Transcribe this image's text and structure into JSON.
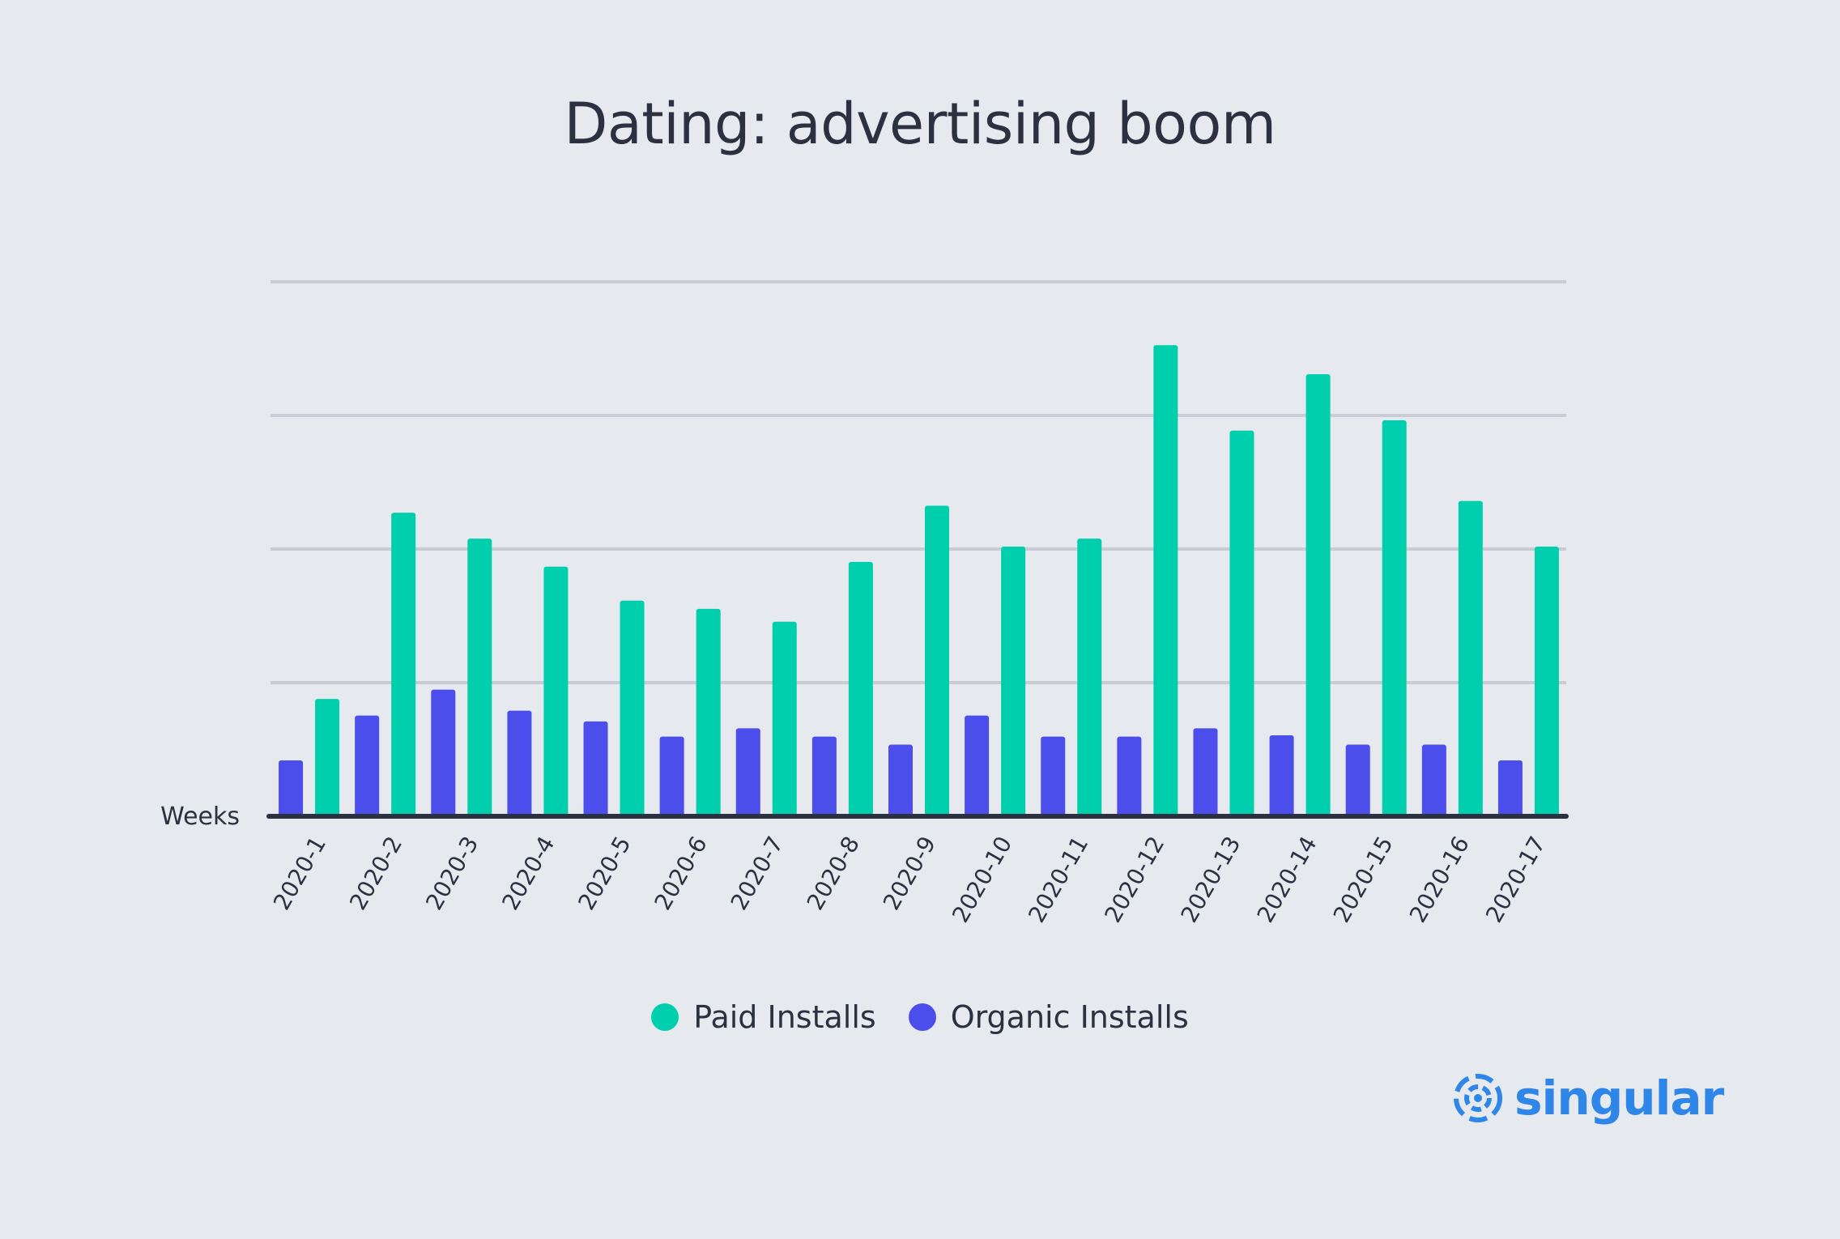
{
  "chart_data": {
    "type": "bar",
    "title": "Dating: advertising boom",
    "xlabel": "Weeks",
    "ylabel": "",
    "ylim": [
      0,
      200
    ],
    "y_gridlines": [
      50,
      100,
      150,
      200
    ],
    "y_tick_labels_shown": false,
    "grid": true,
    "legend_position": "bottom-center",
    "categories": [
      "2020-1",
      "2020-2",
      "2020-3",
      "2020-4",
      "2020-5",
      "2020-6",
      "2020-7",
      "2020-8",
      "2020-9",
      "2020-10",
      "2020-11",
      "2020-12",
      "2020-13",
      "2020-14",
      "2020-15",
      "2020-16",
      "2020-17"
    ],
    "series": [
      {
        "name": "Organic Installs",
        "color": "#4c4eec",
        "values": [
          20.9,
          37.7,
          47.4,
          39.5,
          35.5,
          29.8,
          32.9,
          29.8,
          26.8,
          37.7,
          29.8,
          29.8,
          32.9,
          30.3,
          26.8,
          26.8,
          20.9
        ]
      },
      {
        "name": "Paid Installs",
        "color": "#00cfae",
        "values": [
          43.9,
          113.6,
          103.9,
          93.4,
          80.7,
          77.6,
          72.8,
          95.2,
          116.2,
          100.9,
          103.9,
          176.3,
          144.3,
          165.4,
          148.2,
          118.0,
          100.9
        ]
      }
    ],
    "legend": [
      {
        "label": "Paid Installs",
        "color": "#00cfae"
      },
      {
        "label": "Organic Installs",
        "color": "#4c4eec"
      }
    ]
  },
  "brand": {
    "name": "singular",
    "color": "#2f86e9"
  }
}
